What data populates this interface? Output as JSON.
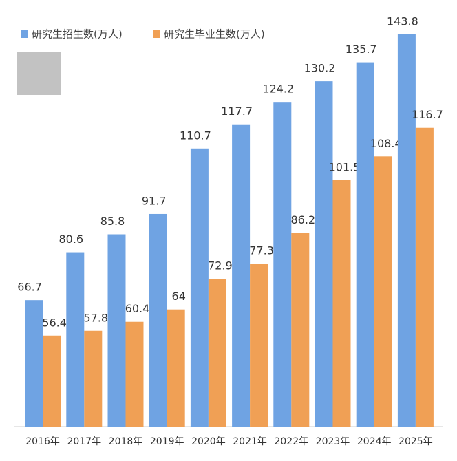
{
  "chart_data": {
    "type": "bar",
    "categories": [
      "2016年",
      "2017年",
      "2018年",
      "2019年",
      "2020年",
      "2021年",
      "2022年",
      "2023年",
      "2024年",
      "2025年"
    ],
    "series": [
      {
        "name": "研究生招生数(万人)",
        "color": "#6fa3e3",
        "values": [
          66.7,
          80.6,
          85.8,
          91.7,
          110.7,
          117.7,
          124.2,
          130.2,
          135.7,
          143.8
        ]
      },
      {
        "name": "研究生毕业生数(万人)",
        "color": "#f0a055",
        "values": [
          56.4,
          57.8,
          60.4,
          64,
          72.9,
          77.3,
          86.2,
          101.5,
          108.4,
          116.7
        ]
      }
    ],
    "ylim": [
      30,
      144
    ]
  }
}
